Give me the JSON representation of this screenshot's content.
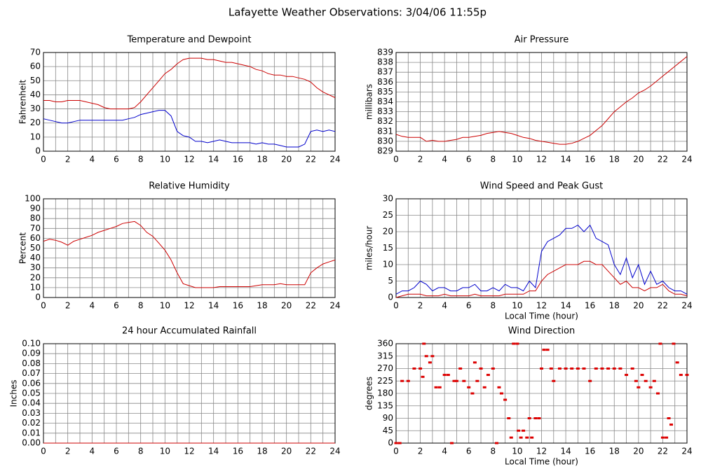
{
  "title": "Lafayette Weather Observations: 3/04/06 11:55p",
  "chart_data": [
    {
      "type": "line",
      "title": "Temperature and Dewpoint",
      "ylabel": "Fahrenheit",
      "x": [
        0,
        0.5,
        1,
        1.5,
        2,
        2.5,
        3,
        3.5,
        4,
        4.5,
        5,
        5.5,
        6,
        6.5,
        7,
        7.5,
        8,
        8.5,
        9,
        9.5,
        10,
        10.5,
        11,
        11.5,
        12,
        12.5,
        13,
        13.5,
        14,
        14.5,
        15,
        15.5,
        16,
        16.5,
        17,
        17.5,
        18,
        18.5,
        19,
        19.5,
        20,
        20.5,
        21,
        21.5,
        22,
        22.5,
        23,
        23.5,
        24
      ],
      "series": [
        {
          "color": "#cc0000",
          "values": [
            36,
            36,
            35,
            35,
            36,
            36,
            36,
            35,
            34,
            33,
            31,
            30,
            30,
            30,
            30,
            31,
            35,
            40,
            45,
            50,
            55,
            58,
            62,
            65,
            66,
            66,
            66,
            65,
            65,
            64,
            63,
            63,
            62,
            61,
            60,
            58,
            57,
            55,
            54,
            54,
            53,
            53,
            52,
            51,
            49,
            45,
            42,
            40,
            38
          ]
        },
        {
          "color": "#0000cc",
          "values": [
            23,
            22,
            21,
            20,
            20,
            21,
            22,
            22,
            22,
            22,
            22,
            22,
            22,
            22,
            23,
            24,
            26,
            27,
            28,
            29,
            29,
            25,
            14,
            11,
            10,
            7,
            7,
            6,
            7,
            8,
            7,
            6,
            6,
            6,
            6,
            5,
            6,
            5,
            5,
            4,
            3,
            3,
            3,
            5,
            14,
            15,
            14,
            15,
            14
          ]
        }
      ],
      "xlim": [
        0,
        24
      ],
      "xticks": [
        0,
        2,
        4,
        6,
        8,
        10,
        12,
        14,
        16,
        18,
        20,
        22,
        24
      ],
      "xminorticks": [
        1,
        3,
        5,
        7,
        9,
        11,
        13,
        15,
        17,
        19,
        21,
        23
      ],
      "ylim": [
        0,
        70
      ],
      "yticks": [
        0,
        10,
        20,
        30,
        40,
        50,
        60,
        70
      ],
      "grid": true
    },
    {
      "type": "line",
      "title": "Air Pressure",
      "ylabel": "millibars",
      "x": [
        0,
        0.5,
        1,
        1.5,
        2,
        2.5,
        3,
        3.5,
        4,
        4.5,
        5,
        5.5,
        6,
        6.5,
        7,
        7.5,
        8,
        8.5,
        9,
        9.5,
        10,
        10.5,
        11,
        11.5,
        12,
        12.5,
        13,
        13.5,
        14,
        14.5,
        15,
        15.5,
        16,
        16.5,
        17,
        17.5,
        18,
        18.5,
        19,
        19.5,
        20,
        20.5,
        21,
        21.5,
        22,
        22.5,
        23,
        23.5,
        24
      ],
      "series": [
        {
          "color": "#cc0000",
          "values": [
            830.7,
            830.5,
            830.4,
            830.4,
            830.4,
            830,
            830.1,
            830,
            830,
            830.1,
            830.2,
            830.4,
            830.4,
            830.5,
            830.6,
            830.8,
            830.9,
            831,
            830.9,
            830.8,
            830.6,
            830.4,
            830.3,
            830.1,
            830,
            829.9,
            829.8,
            829.7,
            829.7,
            829.8,
            830,
            830.3,
            830.6,
            831.1,
            831.6,
            832.3,
            833,
            833.5,
            834,
            834.4,
            834.9,
            835.2,
            835.6,
            836.1,
            836.6,
            837.1,
            837.6,
            838.1,
            838.6
          ]
        }
      ],
      "xlim": [
        0,
        24
      ],
      "xticks": [
        0,
        2,
        4,
        6,
        8,
        10,
        12,
        14,
        16,
        18,
        20,
        22,
        24
      ],
      "xminorticks": [
        1,
        3,
        5,
        7,
        9,
        11,
        13,
        15,
        17,
        19,
        21,
        23
      ],
      "ylim": [
        829,
        839
      ],
      "yticks": [
        829,
        830,
        831,
        832,
        833,
        834,
        835,
        836,
        837,
        838,
        839
      ],
      "grid": true
    },
    {
      "type": "line",
      "title": "Relative Humidity",
      "ylabel": "Percent",
      "x": [
        0,
        0.5,
        1,
        1.5,
        2,
        2.5,
        3,
        3.5,
        4,
        4.5,
        5,
        5.5,
        6,
        6.5,
        7,
        7.5,
        8,
        8.5,
        9,
        9.5,
        10,
        10.5,
        11,
        11.5,
        12,
        12.5,
        13,
        13.5,
        14,
        14.5,
        15,
        15.5,
        16,
        16.5,
        17,
        17.5,
        18,
        18.5,
        19,
        19.5,
        20,
        20.5,
        21,
        21.5,
        22,
        22.5,
        23,
        23.5,
        24
      ],
      "series": [
        {
          "color": "#cc0000",
          "values": [
            57,
            59,
            58,
            56,
            53,
            57,
            59,
            61,
            63,
            66,
            68,
            70,
            72,
            75,
            76,
            77,
            73,
            66,
            62,
            55,
            48,
            38,
            25,
            14,
            12,
            10,
            10,
            10,
            10,
            11,
            11,
            11,
            11,
            11,
            11,
            12,
            13,
            13,
            13,
            14,
            13,
            13,
            13,
            13,
            25,
            30,
            34,
            36,
            38
          ]
        }
      ],
      "xlim": [
        0,
        24
      ],
      "xticks": [
        0,
        2,
        4,
        6,
        8,
        10,
        12,
        14,
        16,
        18,
        20,
        22,
        24
      ],
      "xminorticks": [
        1,
        3,
        5,
        7,
        9,
        11,
        13,
        15,
        17,
        19,
        21,
        23
      ],
      "ylim": [
        0,
        100
      ],
      "yticks": [
        0,
        10,
        20,
        30,
        40,
        50,
        60,
        70,
        80,
        90,
        100
      ],
      "grid": true
    },
    {
      "type": "line",
      "title": "Wind Speed and Peak Gust",
      "ylabel": "miles/hour",
      "xlabel": "Local Time (hour)",
      "x": [
        0,
        0.5,
        1,
        1.5,
        2,
        2.5,
        3,
        3.5,
        4,
        4.5,
        5,
        5.5,
        6,
        6.5,
        7,
        7.5,
        8,
        8.5,
        9,
        9.5,
        10,
        10.5,
        11,
        11.5,
        12,
        12.5,
        13,
        13.5,
        14,
        14.5,
        15,
        15.5,
        16,
        16.5,
        17,
        17.5,
        18,
        18.5,
        19,
        19.5,
        20,
        20.5,
        21,
        21.5,
        22,
        22.5,
        23,
        23.5,
        24
      ],
      "series": [
        {
          "color": "#0000cc",
          "values": [
            1,
            2,
            2,
            3,
            5,
            4,
            2,
            3,
            3,
            2,
            2,
            3,
            3,
            4,
            2,
            2,
            3,
            2,
            4,
            3,
            3,
            2,
            5,
            3,
            14,
            17,
            18,
            19,
            21,
            21,
            22,
            20,
            22,
            18,
            17,
            16,
            10,
            7,
            12,
            6,
            10,
            4,
            8,
            4,
            5,
            3,
            2,
            2,
            1
          ]
        },
        {
          "color": "#cc0000",
          "values": [
            0,
            0.5,
            1,
            1,
            1,
            0.5,
            0.5,
            0.5,
            1,
            0.5,
            0.5,
            0.5,
            0.5,
            1,
            0.5,
            0.5,
            0.5,
            0.5,
            1,
            1,
            1,
            1,
            2,
            2,
            5,
            7,
            8,
            9,
            10,
            10,
            10,
            11,
            11,
            10,
            10,
            8,
            6,
            4,
            5,
            3,
            3,
            2,
            3,
            3,
            4,
            2,
            1,
            1,
            0.5
          ]
        }
      ],
      "xlim": [
        0,
        24
      ],
      "xticks": [
        0,
        2,
        4,
        6,
        8,
        10,
        12,
        14,
        16,
        18,
        20,
        22,
        24
      ],
      "xminorticks": [
        1,
        3,
        5,
        7,
        9,
        11,
        13,
        15,
        17,
        19,
        21,
        23
      ],
      "ylim": [
        0,
        30
      ],
      "yticks": [
        0,
        5,
        10,
        15,
        20,
        25,
        30
      ],
      "grid": true
    },
    {
      "type": "line",
      "title": "24 hour Accumulated Rainfall",
      "ylabel": "Inches",
      "x": [
        0,
        24
      ],
      "series": [
        {
          "color": "#cc0000",
          "values": [
            0,
            0
          ]
        }
      ],
      "xlim": [
        0,
        24
      ],
      "xticks": [
        0,
        2,
        4,
        6,
        8,
        10,
        12,
        14,
        16,
        18,
        20,
        22,
        24
      ],
      "xminorticks": [
        1,
        3,
        5,
        7,
        9,
        11,
        13,
        15,
        17,
        19,
        21,
        23
      ],
      "ylim": [
        0,
        0.1
      ],
      "yticks": [
        {
          "value": 0,
          "label": "0.00"
        },
        {
          "value": 0.01,
          "label": "0.01"
        },
        {
          "value": 0.02,
          "label": "0.02"
        },
        {
          "value": 0.03,
          "label": "0.03"
        },
        {
          "value": 0.04,
          "label": "0.04"
        },
        {
          "value": 0.05,
          "label": "0.05"
        },
        {
          "value": 0.06,
          "label": "0.06"
        },
        {
          "value": 0.07,
          "label": "0.07"
        },
        {
          "value": 0.08,
          "label": "0.08"
        },
        {
          "value": 0.09,
          "label": "0.09"
        },
        {
          "value": 0.1,
          "label": "0.10"
        }
      ],
      "grid": true
    },
    {
      "type": "scatter",
      "title": "Wind Direction",
      "ylabel": "degrees",
      "xlabel": "Local Time (hour)",
      "color": "#dd0000",
      "x": [
        0,
        0.3,
        0.5,
        1,
        1.5,
        2,
        2.2,
        2.3,
        2.5,
        2.8,
        3,
        3.3,
        3.6,
        4,
        4.3,
        4.6,
        4.8,
        5,
        5.3,
        5.6,
        6,
        6.3,
        6.5,
        6.7,
        7,
        7.3,
        7.6,
        8,
        8.3,
        8.5,
        8.7,
        9,
        9.3,
        9.5,
        9.7,
        10,
        10.1,
        10.3,
        10.5,
        10.8,
        11,
        11.2,
        11.5,
        11.8,
        12,
        12.2,
        12.5,
        12.8,
        13,
        13.5,
        14,
        14.5,
        15,
        15.5,
        16,
        16.5,
        17,
        17.5,
        18,
        18.5,
        19,
        19.5,
        19.8,
        20,
        20.3,
        20.6,
        21,
        21.3,
        21.6,
        21.8,
        22,
        22.3,
        22.5,
        22.7,
        22.9,
        23.2,
        23.5,
        24
      ],
      "values": [
        0,
        0,
        225,
        225,
        270,
        270,
        240,
        360,
        315,
        292,
        315,
        202,
        202,
        247,
        247,
        0,
        225,
        225,
        270,
        225,
        202,
        180,
        292,
        225,
        270,
        202,
        247,
        270,
        0,
        202,
        180,
        157,
        90,
        20,
        360,
        360,
        45,
        20,
        45,
        20,
        90,
        20,
        90,
        90,
        270,
        338,
        338,
        270,
        225,
        270,
        270,
        270,
        270,
        270,
        225,
        270,
        270,
        270,
        270,
        270,
        247,
        270,
        225,
        202,
        247,
        225,
        202,
        225,
        180,
        360,
        20,
        20,
        90,
        67,
        360,
        292,
        247,
        247
      ],
      "xlim": [
        0,
        24
      ],
      "xticks": [
        0,
        2,
        4,
        6,
        8,
        10,
        12,
        14,
        16,
        18,
        20,
        22,
        24
      ],
      "xminorticks": [
        1,
        3,
        5,
        7,
        9,
        11,
        13,
        15,
        17,
        19,
        21,
        23
      ],
      "ylim": [
        0,
        360
      ],
      "yticks": [
        0,
        45,
        90,
        135,
        180,
        225,
        270,
        315,
        360
      ],
      "grid": true
    }
  ]
}
